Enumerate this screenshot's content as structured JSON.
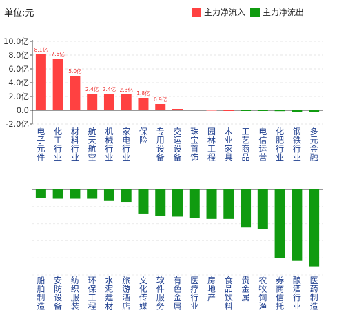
{
  "unit_label": "单位:元",
  "colors": {
    "inflow": "#ff4141",
    "outflow": "#109b10"
  },
  "chart_data": [
    {
      "type": "bar",
      "ylim": [
        -2,
        10
      ],
      "ytick_labels": [
        "10.0亿",
        "8.0亿",
        "6.0亿",
        "4.0亿",
        "2.0亿",
        "0.0",
        "-2.0亿"
      ],
      "yticks": [
        10,
        8,
        6,
        4,
        2,
        0,
        -2
      ],
      "grid": true,
      "legend": {
        "position": "top-right",
        "entries": [
          {
            "name": "主力净流入",
            "color": "#ff4141"
          },
          {
            "name": "主力净流出",
            "color": "#109b10"
          }
        ]
      },
      "categories": [
        "电子元件",
        "化工行业",
        "材料行业",
        "航天航空",
        "机械行业",
        "家电行业",
        "保险",
        "专用设备",
        "交运设备",
        "珠宝首饰",
        "园林工程",
        "木业家具",
        "工艺商品",
        "电信运营",
        "化肥行业",
        "钢铁行业",
        "多元金融"
      ],
      "values": [
        8.1,
        7.5,
        5.0,
        2.4,
        2.4,
        2.3,
        1.8,
        0.9,
        0.2,
        0.1,
        0.05,
        0.0,
        -0.05,
        -0.08,
        -0.12,
        -0.2,
        -0.25
      ],
      "data_labels": [
        "8.1亿",
        "7.5亿",
        "5.0亿",
        "2.4亿",
        "2.4亿",
        "2.3亿",
        "1.8亿",
        "0.9亿",
        "",
        "",
        "",
        "",
        "",
        "",
        "",
        "",
        ""
      ]
    },
    {
      "type": "bar",
      "categories": [
        "船舶制造",
        "安防设备",
        "纺织服装",
        "环保工程",
        "水泥建材",
        "旅游酒店",
        "文化传媒",
        "软件服务",
        "有色金属",
        "医疗行业",
        "房地产",
        "食品饮料",
        "贵金属",
        "农牧饲渔",
        "券商信托",
        "酿酒行业",
        "医药制造"
      ],
      "values": [
        -1.1,
        -1.2,
        -1.2,
        -1.2,
        -1.4,
        -1.6,
        -3.1,
        -3.4,
        -3.5,
        -3.7,
        -3.8,
        -3.8,
        -4.9,
        -5.1,
        -8.8,
        -9.2,
        -9.9
      ],
      "ylim": [
        -11,
        0
      ],
      "grid": true
    }
  ]
}
